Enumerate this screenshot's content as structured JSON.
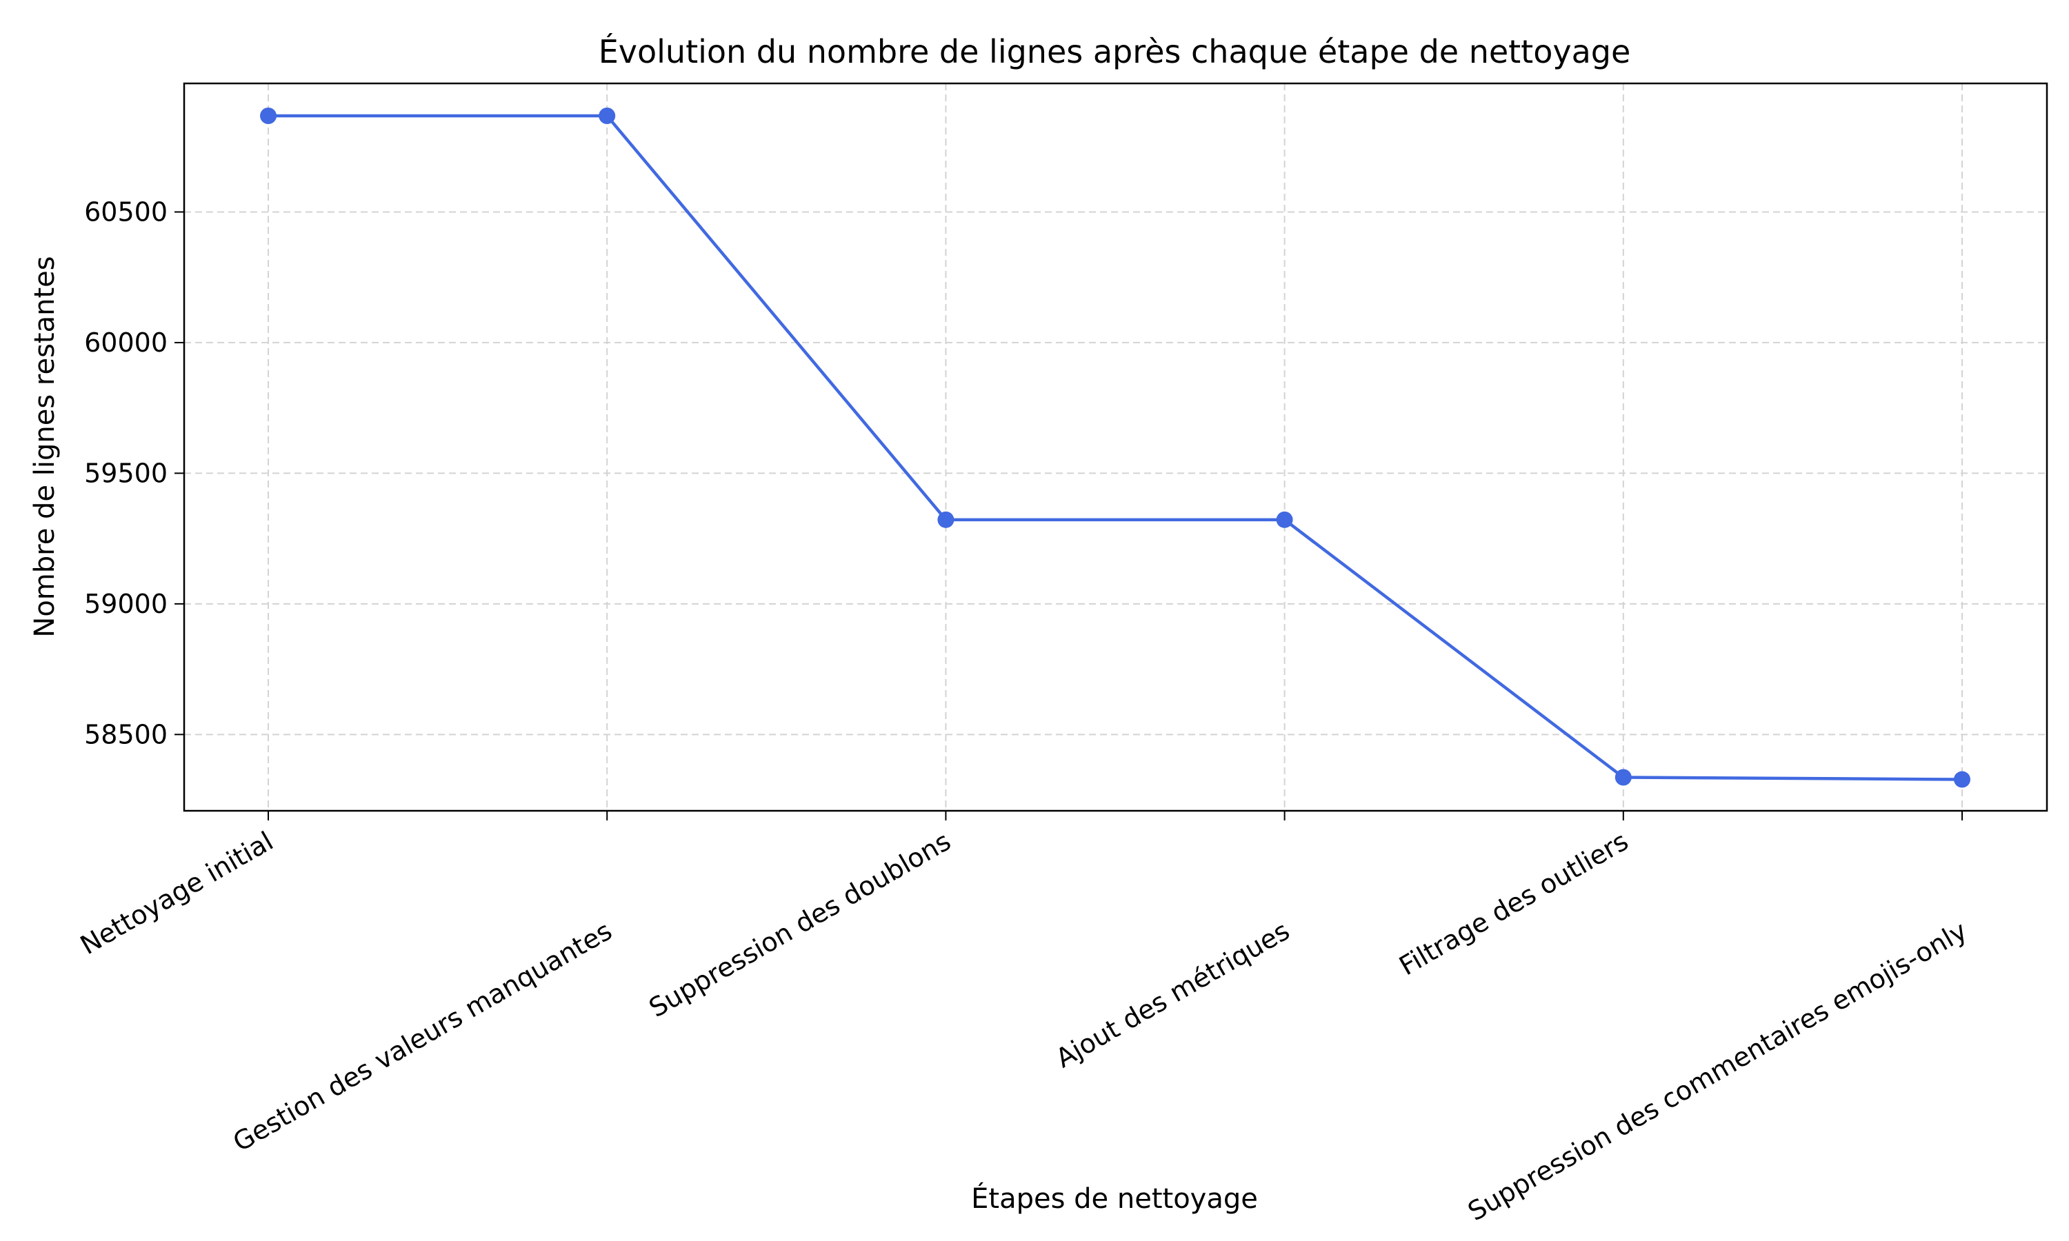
{
  "chart_data": {
    "type": "line",
    "title": "Évolution du nombre de lignes après chaque étape de nettoyage",
    "xlabel": "Étapes de nettoyage",
    "ylabel": "Nombre de lignes restantes",
    "categories": [
      "Nettoyage initial",
      "Gestion des valeurs manquantes",
      "Suppression des doublons",
      "Ajout des métriques",
      "Filtrage des outliers",
      "Suppression des commentaires emojis-only"
    ],
    "series": [
      {
        "values": [
          60868,
          60868,
          59322,
          59322,
          58336,
          58328
        ],
        "color": "#4169e1"
      }
    ],
    "yticks": [
      58500,
      59000,
      59500,
      60000,
      60500
    ],
    "ylim": [
      58208,
      60992
    ],
    "grid": true,
    "grid_style": "dashed",
    "marker": "circle",
    "legend": false
  }
}
